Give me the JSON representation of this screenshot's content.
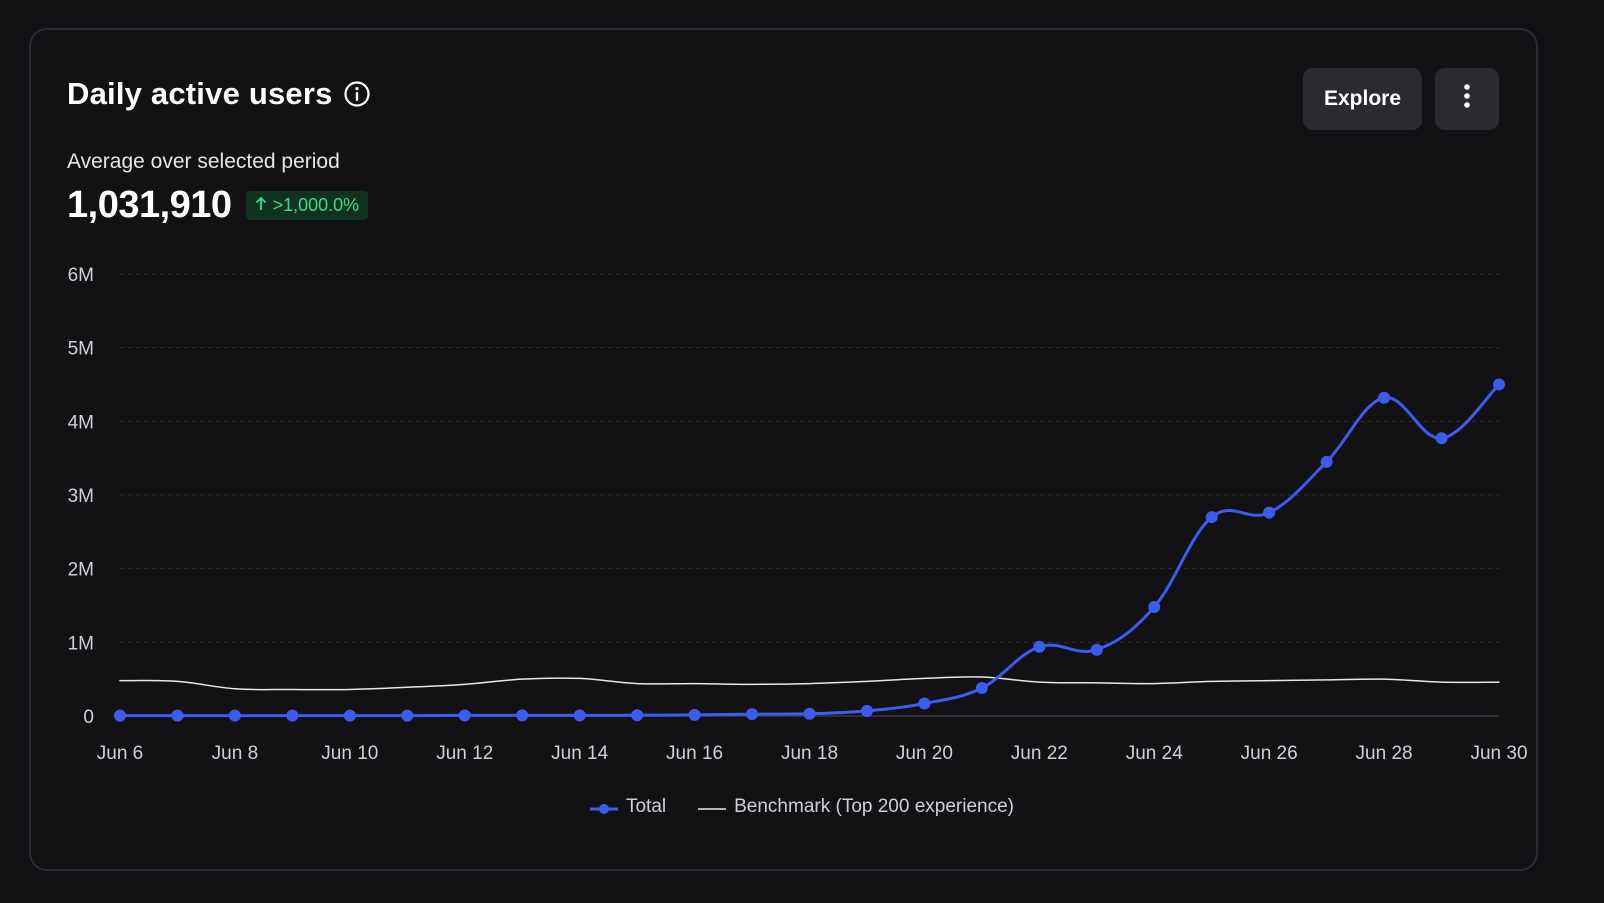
{
  "header": {
    "title": "Daily active users",
    "subtitle": "Average over selected period",
    "metric_value": "1,031,910",
    "change_badge": ">1,000.0%",
    "explore_label": "Explore"
  },
  "colors": {
    "total": "#3c5cf0",
    "benchmark": "#e8e8ea",
    "badge_text": "#3ddc84",
    "badge_bg": "#0f3320"
  },
  "icons": {
    "info": "info-icon",
    "more": "vertical-ellipsis-icon",
    "badge_arrow": "arrow-up-icon"
  },
  "chart_data": {
    "type": "line",
    "title": "Daily active users",
    "x": [
      "Jun 6",
      "Jun 7",
      "Jun 8",
      "Jun 9",
      "Jun 10",
      "Jun 11",
      "Jun 12",
      "Jun 13",
      "Jun 14",
      "Jun 15",
      "Jun 16",
      "Jun 17",
      "Jun 18",
      "Jun 19",
      "Jun 20",
      "Jun 21",
      "Jun 22",
      "Jun 23",
      "Jun 24",
      "Jun 25",
      "Jun 26",
      "Jun 27",
      "Jun 28",
      "Jun 29",
      "Jun 30"
    ],
    "x_tick_labels": [
      "Jun 6",
      "Jun 8",
      "Jun 10",
      "Jun 12",
      "Jun 14",
      "Jun 16",
      "Jun 18",
      "Jun 20",
      "Jun 22",
      "Jun 24",
      "Jun 26",
      "Jun 28",
      "Jun 30"
    ],
    "y_ticks": [
      0,
      1000000,
      2000000,
      3000000,
      4000000,
      5000000,
      6000000
    ],
    "y_tick_labels": [
      "0",
      "1M",
      "2M",
      "3M",
      "4M",
      "5M",
      "6M"
    ],
    "ylim": [
      0,
      6000000
    ],
    "grid": true,
    "legend_position": "bottom-center",
    "series": [
      {
        "name": "Total",
        "markers": true,
        "values": [
          5000,
          5000,
          5000,
          5000,
          5000,
          5000,
          8000,
          8000,
          8000,
          10000,
          15000,
          25000,
          30000,
          70000,
          170000,
          380000,
          940000,
          900000,
          1480000,
          2700000,
          2760000,
          3450000,
          4320000,
          3770000,
          4500000
        ]
      },
      {
        "name": "Benchmark (Top 200 experience)",
        "markers": false,
        "values": [
          480000,
          470000,
          370000,
          360000,
          360000,
          390000,
          430000,
          500000,
          510000,
          440000,
          440000,
          430000,
          440000,
          470000,
          510000,
          530000,
          460000,
          450000,
          440000,
          470000,
          480000,
          490000,
          500000,
          460000,
          460000
        ]
      }
    ]
  }
}
